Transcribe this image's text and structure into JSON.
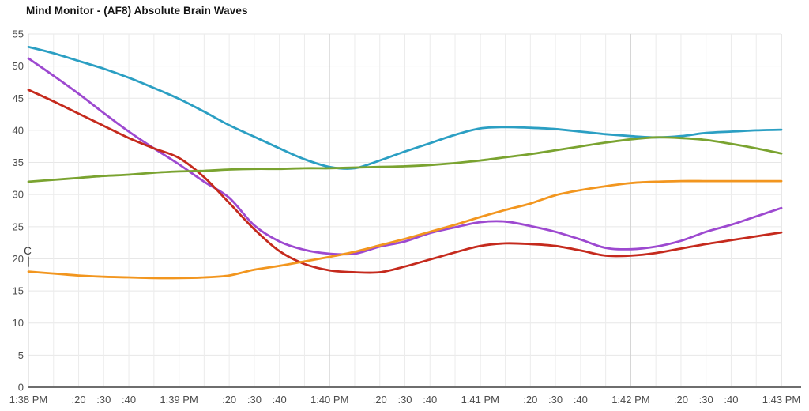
{
  "title": "Mind Monitor - (AF8) Absolute Brain Waves",
  "annotation": {
    "text": "C",
    "time_index": 0,
    "value": 21.2
  },
  "palette": {
    "background": "#ffffff",
    "title_color": "#141414",
    "axis_label_color": "#4d4d4d",
    "grid_minor": "#ececec",
    "grid_major": "#d2d2d2",
    "grid_horizontal": "#e7e7e7",
    "axis_line": "#6e6e6e",
    "marker_color": "#3a3a3a"
  },
  "chart_data": {
    "type": "line",
    "title": "Mind Monitor - (AF8) Absolute Brain Waves",
    "xlabel": "",
    "ylabel": "",
    "ylim": [
      0,
      55
    ],
    "y_ticks": [
      0,
      5,
      10,
      15,
      20,
      25,
      30,
      35,
      40,
      45,
      50,
      55
    ],
    "grid": true,
    "legend_position": "none",
    "x_tick_interval_seconds": 10,
    "x_labels": [
      "1:38 PM",
      "",
      ":20",
      ":30",
      ":40",
      "",
      "1:39 PM",
      "",
      ":20",
      ":30",
      ":40",
      "",
      "1:40 PM",
      "",
      ":20",
      ":30",
      ":40",
      "",
      "1:41 PM",
      "",
      ":20",
      ":30",
      ":40",
      "",
      "1:42 PM",
      "",
      ":20",
      ":30",
      ":40",
      "",
      "1:43 PM"
    ],
    "x_major_indices": [
      0,
      6,
      12,
      18,
      24,
      30
    ],
    "series": [
      {
        "name": "blue",
        "color": "#2b9fc3",
        "values": [
          53.0,
          52.0,
          50.8,
          49.6,
          48.2,
          46.6,
          44.9,
          42.9,
          40.8,
          39.0,
          37.2,
          35.5,
          34.3,
          34.1,
          35.3,
          36.7,
          38.0,
          39.3,
          40.3,
          40.5,
          40.4,
          40.2,
          39.8,
          39.4,
          39.1,
          38.9,
          39.1,
          39.6,
          39.8,
          40.0,
          40.1
        ]
      },
      {
        "name": "purple",
        "color": "#9d49d0",
        "values": [
          51.2,
          48.5,
          45.7,
          42.7,
          39.8,
          37.2,
          34.7,
          32.0,
          29.5,
          25.2,
          22.7,
          21.4,
          20.8,
          20.8,
          21.9,
          22.7,
          24.0,
          24.9,
          25.7,
          25.8,
          25.1,
          24.2,
          23.0,
          21.7,
          21.5,
          21.9,
          22.8,
          24.2,
          25.3,
          26.6,
          27.9
        ]
      },
      {
        "name": "red",
        "color": "#c52a1d",
        "values": [
          46.3,
          44.5,
          42.6,
          40.7,
          38.8,
          37.2,
          35.7,
          32.7,
          28.7,
          24.6,
          21.2,
          19.2,
          18.2,
          17.9,
          17.9,
          18.8,
          19.9,
          21.0,
          22.0,
          22.4,
          22.3,
          22.0,
          21.3,
          20.5,
          20.5,
          20.9,
          21.6,
          22.3,
          22.9,
          23.5,
          24.1
        ]
      },
      {
        "name": "green",
        "color": "#7aa330",
        "values": [
          32.0,
          32.3,
          32.6,
          32.9,
          33.1,
          33.4,
          33.6,
          33.7,
          33.9,
          34.0,
          34.0,
          34.1,
          34.1,
          34.2,
          34.3,
          34.4,
          34.6,
          34.9,
          35.3,
          35.8,
          36.3,
          36.9,
          37.5,
          38.1,
          38.6,
          38.9,
          38.8,
          38.5,
          37.9,
          37.2,
          36.4
        ]
      },
      {
        "name": "orange",
        "color": "#f2961f",
        "values": [
          18.0,
          17.7,
          17.4,
          17.2,
          17.1,
          17.0,
          17.0,
          17.1,
          17.4,
          18.3,
          18.9,
          19.6,
          20.3,
          21.1,
          22.1,
          23.1,
          24.2,
          25.3,
          26.5,
          27.6,
          28.6,
          29.9,
          30.7,
          31.3,
          31.8,
          32.0,
          32.1,
          32.1,
          32.1,
          32.1,
          32.1
        ]
      }
    ]
  }
}
